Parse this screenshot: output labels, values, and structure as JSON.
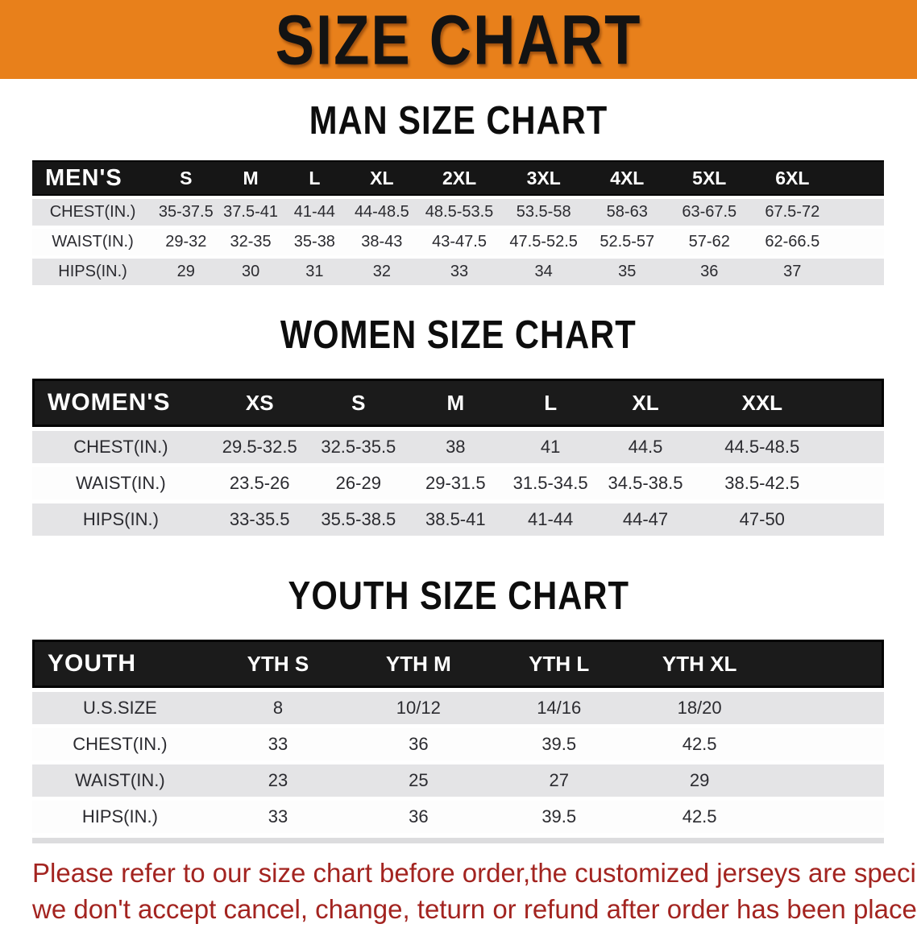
{
  "banner": {
    "title": "SIZE CHART",
    "background": "#E8801B"
  },
  "sections": {
    "men": {
      "heading": "MAN SIZE CHART",
      "table": {
        "header": [
          "MEN'S",
          "S",
          "M",
          "L",
          "XL",
          "2XL",
          "3XL",
          "4XL",
          "5XL",
          "6XL"
        ],
        "col_widths": [
          "14.2%",
          "7.7%",
          "7.5%",
          "7.5%",
          "8.3%",
          "9.9%",
          "9.9%",
          "9.7%",
          "9.6%",
          "9.9%",
          "5.8%"
        ],
        "rows": [
          {
            "label": "CHEST(IN.)",
            "values": [
              "35-37.5",
              "37.5-41",
              "41-44",
              "44-48.5",
              "48.5-53.5",
              "53.5-58",
              "58-63",
              "63-67.5",
              "67.5-72"
            ]
          },
          {
            "label": "WAIST(IN.)",
            "values": [
              "29-32",
              "32-35",
              "35-38",
              "38-43",
              "43-47.5",
              "47.5-52.5",
              "52.5-57",
              "57-62",
              "62-66.5"
            ]
          },
          {
            "label": "HIPS(IN.)",
            "values": [
              "29",
              "30",
              "31",
              "32",
              "33",
              "34",
              "35",
              "36",
              "37"
            ]
          }
        ]
      }
    },
    "women": {
      "heading": "WOMEN SIZE CHART",
      "table": {
        "header": [
          "WOMEN'S",
          "XS",
          "S",
          "M",
          "L",
          "XL",
          "XXL"
        ],
        "col_widths": [
          "20.8%",
          "11.8%",
          "11.4%",
          "11.4%",
          "10.9%",
          "11.4%",
          "16.0%",
          "6.3%"
        ],
        "rows": [
          {
            "label": "CHEST(IN.)",
            "values": [
              "29.5-32.5",
              "32.5-35.5",
              "38",
              "41",
              "44.5",
              "44.5-48.5"
            ]
          },
          {
            "label": "WAIST(IN.)",
            "values": [
              "23.5-26",
              "26-29",
              "29-31.5",
              "31.5-34.5",
              "34.5-38.5",
              "38.5-42.5"
            ]
          },
          {
            "label": "HIPS(IN.)",
            "values": [
              "33-35.5",
              "35.5-38.5",
              "38.5-41",
              "41-44",
              "44-47",
              "47-50"
            ]
          }
        ]
      }
    },
    "youth": {
      "heading": "YOUTH SIZE CHART",
      "table": {
        "header": [
          "YOUTH",
          "YTH S",
          "YTH M",
          "YTH L",
          "YTH XL"
        ],
        "col_widths": [
          "20.6%",
          "16.5%",
          "16.5%",
          "16.5%",
          "16.5%",
          "13.4%"
        ],
        "rows": [
          {
            "label": "U.S.SIZE",
            "values": [
              "8",
              "10/12",
              "14/16",
              "18/20"
            ]
          },
          {
            "label": "CHEST(IN.)",
            "values": [
              "33",
              "36",
              "39.5",
              "42.5"
            ]
          },
          {
            "label": "WAIST(IN.)",
            "values": [
              "23",
              "25",
              "27",
              "29"
            ]
          },
          {
            "label": "HIPS(IN.)",
            "values": [
              "33",
              "36",
              "39.5",
              "42.5"
            ]
          }
        ]
      }
    }
  },
  "disclaimer": {
    "line1": "Please refer to our size chart before order,the customized jerseys are special products,",
    "line2": "we don't accept cancel, change, teturn or refund after order has been placed!",
    "color": "#A32420"
  },
  "colors": {
    "banner_orange": "#E8801B",
    "band_black": "#161616",
    "row_gray": "#E4E4E6",
    "text_dark": "#2B2B30",
    "disclaimer_red": "#A32420"
  }
}
